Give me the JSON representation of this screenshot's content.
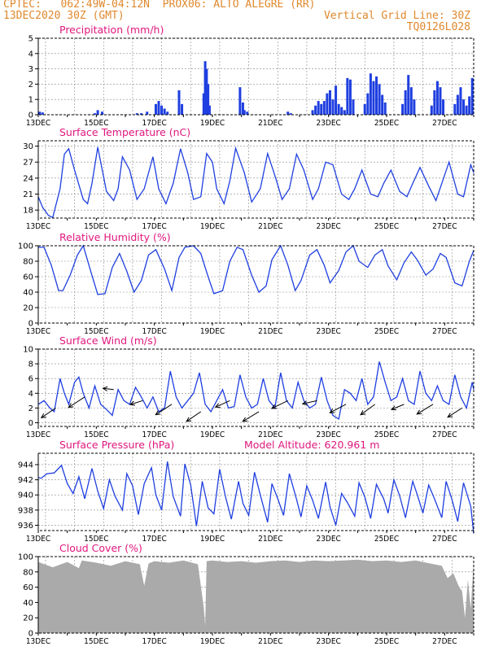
{
  "header": {
    "line1_left": "CPTEC:   062:49W-04:12N  PROX06: ALTO ALEGRE (RR)",
    "line2_left": "13DEC2020 30Z (GMT)",
    "line2_right": "Vertical Grid Line: 30Z",
    "line3_right": "TQ0126L028"
  },
  "colors": {
    "header": "#e0882e",
    "title": "#e0177e",
    "line": "#1f3fe0",
    "cloud": "#aaaaaa",
    "grid": "#888888"
  },
  "x_tick_labels": [
    "13DEC",
    "15DEC",
    "17DEC",
    "19DEC",
    "21DEC",
    "23DEC",
    "25DEC",
    "27DEC"
  ],
  "chart_data": [
    {
      "type": "bar",
      "title": "Precipitation (mm/h)",
      "x_start_day": 13,
      "x_end_day": 28.0,
      "ylim": [
        0,
        5
      ],
      "yticks": [
        0,
        1,
        2,
        3,
        4,
        5
      ],
      "x": [
        13.05,
        13.15,
        14.95,
        15.05,
        15.2,
        16.4,
        16.55,
        16.75,
        17.05,
        17.15,
        17.25,
        17.35,
        17.45,
        17.85,
        17.95,
        18.7,
        18.75,
        18.8,
        18.85,
        18.9,
        19.95,
        20.05,
        20.1,
        20.2,
        21.6,
        21.7,
        22.45,
        22.55,
        22.65,
        22.75,
        22.85,
        22.95,
        23.05,
        23.15,
        23.25,
        23.35,
        23.45,
        23.55,
        23.65,
        23.75,
        23.85,
        24.25,
        24.35,
        24.45,
        24.55,
        24.65,
        24.75,
        24.85,
        24.95,
        25.55,
        25.65,
        25.75,
        25.85,
        25.95,
        26.55,
        26.65,
        26.75,
        26.85,
        26.95,
        27.35,
        27.45,
        27.55,
        27.65,
        27.75,
        27.85,
        27.95
      ],
      "values": [
        0.2,
        0.15,
        0.1,
        0.3,
        0.2,
        0.1,
        0.1,
        0.2,
        0.7,
        0.9,
        0.6,
        0.4,
        0.2,
        1.6,
        0.7,
        1.4,
        3.5,
        3.0,
        2.0,
        0.6,
        1.8,
        0.8,
        0.3,
        0.2,
        0.2,
        0.1,
        0.3,
        0.6,
        0.9,
        0.7,
        0.9,
        1.4,
        1.6,
        1.0,
        1.9,
        0.7,
        0.5,
        0.3,
        2.4,
        2.3,
        1.0,
        0.7,
        1.4,
        2.7,
        2.2,
        2.5,
        2.0,
        1.3,
        0.8,
        0.7,
        1.6,
        2.6,
        1.8,
        1.0,
        0.6,
        1.6,
        2.2,
        1.8,
        1.0,
        0.7,
        1.3,
        1.8,
        1.0,
        0.6,
        1.2,
        2.4
      ]
    },
    {
      "type": "line",
      "title": "Surface Temperature (nC)",
      "ylim": [
        16.5,
        31
      ],
      "yticks": [
        18,
        21,
        24,
        27,
        30
      ],
      "x": [
        13,
        13.15,
        13.35,
        13.5,
        13.75,
        13.9,
        14.05,
        14.25,
        14.55,
        14.7,
        14.85,
        15.05,
        15.35,
        15.6,
        15.75,
        15.9,
        16.15,
        16.4,
        16.65,
        16.95,
        17.15,
        17.4,
        17.65,
        17.9,
        18.15,
        18.35,
        18.6,
        18.8,
        19.0,
        19.15,
        19.4,
        19.6,
        19.8,
        20.1,
        20.35,
        20.65,
        20.9,
        21.15,
        21.4,
        21.65,
        21.9,
        22.15,
        22.45,
        22.65,
        22.9,
        23.15,
        23.45,
        23.7,
        23.9,
        24.15,
        24.45,
        24.7,
        24.9,
        25.15,
        25.45,
        25.7,
        25.9,
        26.15,
        26.45,
        26.7,
        26.9,
        27.15,
        27.45,
        27.65,
        27.9,
        28.0
      ],
      "values": [
        20.5,
        18.5,
        17,
        16.6,
        22,
        28.5,
        29.5,
        25.5,
        20,
        19.2,
        23,
        29.8,
        21.5,
        19.8,
        22,
        28,
        25.5,
        20,
        22,
        28,
        22,
        19.2,
        23,
        29.5,
        25,
        20,
        20.5,
        28.6,
        27,
        22,
        19.2,
        23.5,
        29.6,
        25,
        19.5,
        22,
        28.6,
        24.5,
        20,
        22,
        28.5,
        25.5,
        20,
        22,
        27,
        26.5,
        21,
        20,
        22,
        25.5,
        21,
        20.5,
        23,
        25.5,
        21.5,
        20.5,
        23,
        26,
        22.5,
        19.8,
        23,
        27,
        21,
        20.5,
        26.5,
        25
      ]
    },
    {
      "type": "line",
      "title": "Relative Humidity (%)",
      "ylim": [
        0,
        100
      ],
      "yticks": [
        0,
        20,
        40,
        60,
        80,
        100
      ],
      "x": [
        13,
        13.2,
        13.45,
        13.7,
        13.85,
        14.1,
        14.35,
        14.55,
        14.8,
        15.05,
        15.3,
        15.55,
        15.8,
        16.05,
        16.3,
        16.55,
        16.8,
        17.05,
        17.35,
        17.6,
        17.85,
        18.05,
        18.35,
        18.6,
        18.85,
        19.05,
        19.35,
        19.6,
        19.85,
        20.05,
        20.35,
        20.6,
        20.85,
        21.05,
        21.35,
        21.6,
        21.85,
        22.05,
        22.35,
        22.6,
        22.85,
        23.05,
        23.35,
        23.6,
        23.85,
        24.05,
        24.35,
        24.6,
        24.85,
        25.05,
        25.35,
        25.6,
        25.85,
        26.05,
        26.35,
        26.6,
        26.85,
        27.05,
        27.35,
        27.6,
        27.85,
        28.0
      ],
      "values": [
        98,
        98,
        75,
        42,
        42,
        62,
        88,
        100,
        68,
        37,
        38,
        72,
        90,
        67,
        40,
        55,
        88,
        95,
        70,
        42,
        85,
        98,
        100,
        90,
        60,
        38,
        42,
        80,
        98,
        95,
        62,
        40,
        48,
        82,
        100,
        75,
        42,
        55,
        88,
        95,
        75,
        52,
        68,
        92,
        100,
        80,
        72,
        88,
        95,
        74,
        56,
        78,
        92,
        82,
        62,
        70,
        90,
        85,
        52,
        48,
        80,
        94
      ]
    },
    {
      "type": "line",
      "title": "Surface Wind (m/s)",
      "ylim": [
        -0.5,
        10
      ],
      "yticks": [
        0,
        2,
        4,
        6,
        8,
        10
      ],
      "x": [
        13,
        13.2,
        13.4,
        13.55,
        13.75,
        13.9,
        14.05,
        14.25,
        14.4,
        14.55,
        14.75,
        14.95,
        15.15,
        15.35,
        15.55,
        15.75,
        15.95,
        16.15,
        16.35,
        16.55,
        16.75,
        16.95,
        17.15,
        17.35,
        17.55,
        17.75,
        17.95,
        18.15,
        18.35,
        18.55,
        18.75,
        18.95,
        19.15,
        19.35,
        19.55,
        19.75,
        19.95,
        20.15,
        20.35,
        20.55,
        20.75,
        20.95,
        21.15,
        21.35,
        21.55,
        21.75,
        21.95,
        22.15,
        22.35,
        22.55,
        22.75,
        22.95,
        23.15,
        23.35,
        23.55,
        23.75,
        23.95,
        24.15,
        24.35,
        24.55,
        24.75,
        24.95,
        25.15,
        25.35,
        25.55,
        25.75,
        25.95,
        26.15,
        26.35,
        26.55,
        26.75,
        26.95,
        27.15,
        27.35,
        27.55,
        27.75,
        27.95,
        28.0
      ],
      "values": [
        2.5,
        3.0,
        2.0,
        1.5,
        6.0,
        4.0,
        2.5,
        5.5,
        6.2,
        4.0,
        2.0,
        5.0,
        2.5,
        1.8,
        1.0,
        4.5,
        3.0,
        2.5,
        4.8,
        3.5,
        2.0,
        3.5,
        1.5,
        2.0,
        7.0,
        3.5,
        2.0,
        3.0,
        4.0,
        6.8,
        2.5,
        1.5,
        3.0,
        4.5,
        2.0,
        2.2,
        6.5,
        3.5,
        2.0,
        2.5,
        6.0,
        3.0,
        2.0,
        6.8,
        3.0,
        2.0,
        5.5,
        3.0,
        2.0,
        2.5,
        6.2,
        3.0,
        1.0,
        0.5,
        4.5,
        4.0,
        3.0,
        6.0,
        2.5,
        3.5,
        8.3,
        5.5,
        3.0,
        3.5,
        6.0,
        3.0,
        2.5,
        7.0,
        4.0,
        3.0,
        5.0,
        3.0,
        2.5,
        6.5,
        3.5,
        2.0,
        5.5,
        4.5
      ],
      "arrows": {
        "x": [
          13.6,
          14.6,
          15.6,
          16.6,
          17.6,
          18.6,
          19.6,
          20.6,
          21.6,
          22.6,
          23.6,
          24.6,
          25.6,
          26.6,
          27.6
        ],
        "y": [
          2.0,
          3.5,
          4.5,
          3.0,
          2.5,
          1.5,
          3.0,
          1.5,
          3.0,
          3.0,
          2.5,
          2.5,
          2.5,
          2.5,
          2.0
        ],
        "dx": [
          -0.8,
          -0.9,
          -0.6,
          -0.7,
          -0.9,
          -0.8,
          -0.8,
          -0.9,
          -0.9,
          -0.8,
          -0.9,
          -0.8,
          -0.7,
          -0.9,
          -0.8
        ],
        "dy": [
          -1.5,
          -1.6,
          0.2,
          -0.6,
          -1.6,
          -1.5,
          -1.0,
          -1.5,
          -1.2,
          -0.5,
          -1.3,
          -1.6,
          -0.8,
          -1.5,
          -1.4
        ]
      }
    },
    {
      "type": "line",
      "title": "Surface Pressure (hPa)",
      "annotation": "Model Altitude: 620.961 m",
      "ylim": [
        935.3,
        945.5
      ],
      "yticks": [
        936,
        938,
        940,
        942,
        944
      ],
      "x": [
        13,
        13.1,
        13.3,
        13.55,
        13.8,
        14.0,
        14.2,
        14.4,
        14.6,
        14.85,
        15.05,
        15.25,
        15.45,
        15.65,
        15.9,
        16.05,
        16.25,
        16.45,
        16.65,
        16.9,
        17.05,
        17.25,
        17.45,
        17.65,
        17.9,
        18.05,
        18.25,
        18.45,
        18.65,
        18.85,
        19.05,
        19.25,
        19.45,
        19.65,
        19.9,
        20.05,
        20.25,
        20.45,
        20.65,
        20.9,
        21.05,
        21.25,
        21.45,
        21.65,
        21.9,
        22.05,
        22.25,
        22.45,
        22.65,
        22.9,
        23.05,
        23.25,
        23.45,
        23.65,
        23.9,
        24.05,
        24.25,
        24.45,
        24.65,
        24.9,
        25.05,
        25.25,
        25.45,
        25.65,
        25.9,
        26.05,
        26.25,
        26.45,
        26.65,
        26.9,
        27.05,
        27.25,
        27.45,
        27.65,
        27.9,
        28.0
      ],
      "values": [
        942.3,
        942.2,
        942.8,
        942.9,
        943.9,
        941.5,
        940.2,
        942.4,
        939.5,
        943.5,
        940.5,
        938.2,
        942.0,
        939.8,
        938.0,
        942.8,
        941.2,
        937.4,
        941.5,
        943.6,
        940.0,
        938.0,
        944.4,
        939.8,
        937.2,
        944.1,
        941.3,
        935.9,
        941.8,
        938.3,
        937.5,
        943.4,
        939.8,
        936.8,
        941.8,
        938.9,
        937.3,
        943.0,
        940.0,
        936.4,
        941.5,
        939.5,
        937.3,
        942.8,
        939.4,
        937.1,
        941.2,
        939.3,
        936.9,
        941.7,
        938.4,
        936.0,
        940.2,
        939.0,
        937.2,
        941.6,
        939.7,
        936.9,
        941.4,
        939.5,
        937.6,
        942.0,
        939.9,
        937.0,
        941.8,
        940.1,
        937.6,
        941.3,
        939.5,
        937.0,
        941.8,
        939.4,
        936.5,
        941.6,
        938.5,
        934.9
      ]
    },
    {
      "type": "area",
      "title": "Cloud Cover (%)",
      "ylim": [
        0,
        100
      ],
      "yticks": [
        0,
        20,
        40,
        60,
        80,
        100
      ],
      "x": [
        13,
        13.5,
        14.0,
        14.4,
        14.5,
        15.0,
        15.5,
        16.0,
        16.5,
        16.65,
        16.8,
        17.0,
        17.5,
        18.0,
        18.5,
        18.7,
        18.75,
        18.8,
        19.0,
        19.5,
        20.0,
        20.5,
        21.0,
        21.5,
        22.0,
        22.5,
        23.0,
        23.5,
        24.0,
        24.5,
        25.0,
        25.5,
        26.0,
        26.5,
        26.9,
        27.1,
        27.3,
        27.5,
        27.6,
        27.7,
        27.8,
        27.9,
        28.0
      ],
      "values": [
        93,
        86,
        93,
        85,
        95,
        92,
        88,
        94,
        90,
        62,
        91,
        94,
        92,
        95,
        90,
        34,
        10,
        94,
        95,
        93,
        94,
        92,
        94,
        95,
        93,
        95,
        94,
        95,
        96,
        94,
        95,
        93,
        95,
        91,
        88,
        72,
        78,
        60,
        55,
        20,
        70,
        32,
        94
      ]
    }
  ]
}
